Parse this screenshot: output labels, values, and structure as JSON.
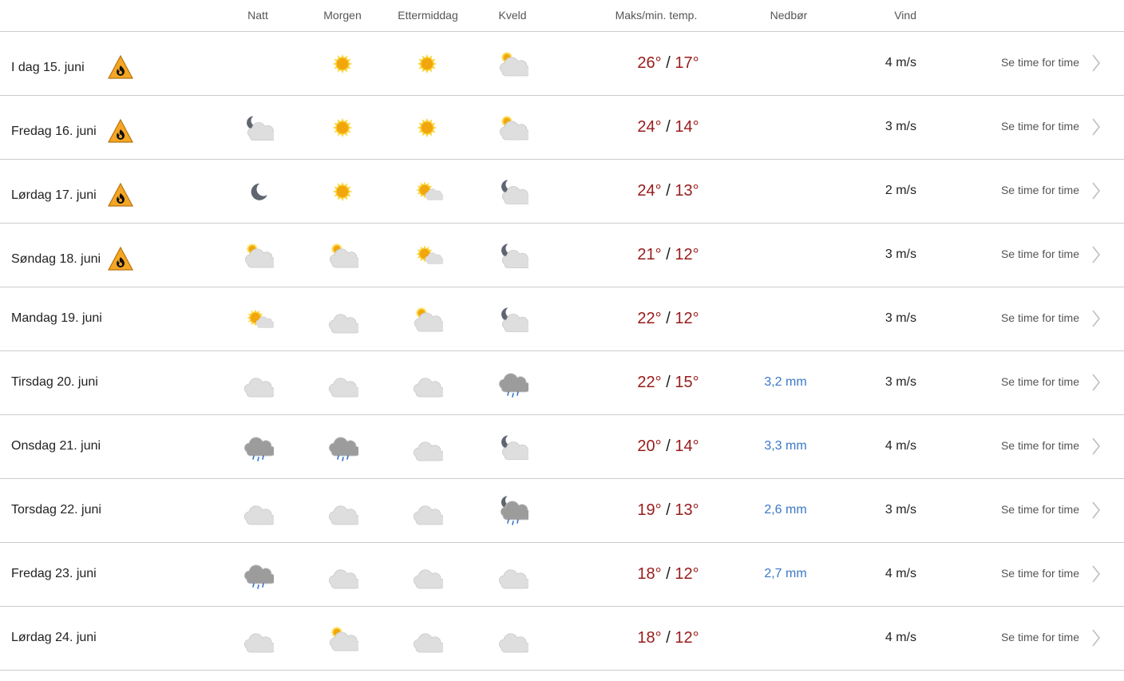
{
  "header": {
    "night": "Natt",
    "morning": "Morgen",
    "afternoon": "Ettermiddag",
    "evening": "Kveld",
    "temp": "Maks/min. temp.",
    "precip": "Nedbør",
    "wind": "Vind"
  },
  "colors": {
    "temp": "#9a1b1b",
    "precip": "#3a78c8",
    "warning": "#f5a623"
  },
  "rows": [
    {
      "day": "I dag 15. juni",
      "warning": "fire-danger",
      "icons": [
        "",
        "sun",
        "sun",
        "partly-cloudy-day"
      ],
      "max": "26°",
      "min": "17°",
      "precip": "",
      "wind": "4 m/s",
      "link": "Se time for time"
    },
    {
      "day": "Fredag 16. juni",
      "warning": "fire-danger",
      "icons": [
        "partly-cloudy-night",
        "sun",
        "sun",
        "partly-cloudy-day"
      ],
      "max": "24°",
      "min": "14°",
      "precip": "",
      "wind": "3 m/s",
      "link": "Se time for time"
    },
    {
      "day": "Lørdag 17. juni",
      "warning": "fire-danger",
      "icons": [
        "moon",
        "sun",
        "fair-day",
        "partly-cloudy-night"
      ],
      "max": "24°",
      "min": "13°",
      "precip": "",
      "wind": "2 m/s",
      "link": "Se time for time"
    },
    {
      "day": "Søndag 18. juni",
      "warning": "fire-danger",
      "icons": [
        "partly-cloudy-day",
        "partly-cloudy-day",
        "fair-day",
        "partly-cloudy-night"
      ],
      "max": "21°",
      "min": "12°",
      "precip": "",
      "wind": "3 m/s",
      "link": "Se time for time"
    },
    {
      "day": "Mandag 19. juni",
      "warning": "",
      "icons": [
        "fair-day",
        "cloud",
        "partly-cloudy-day",
        "partly-cloudy-night"
      ],
      "max": "22°",
      "min": "12°",
      "precip": "",
      "wind": "3 m/s",
      "link": "Se time for time"
    },
    {
      "day": "Tirsdag 20. juni",
      "warning": "",
      "icons": [
        "cloud",
        "cloud",
        "cloud",
        "rain"
      ],
      "max": "22°",
      "min": "15°",
      "precip": "3,2 mm",
      "wind": "3 m/s",
      "link": "Se time for time"
    },
    {
      "day": "Onsdag 21. juni",
      "warning": "",
      "icons": [
        "rain",
        "rain",
        "cloud",
        "partly-cloudy-night"
      ],
      "max": "20°",
      "min": "14°",
      "precip": "3,3 mm",
      "wind": "4 m/s",
      "link": "Se time for time"
    },
    {
      "day": "Torsdag 22. juni",
      "warning": "",
      "icons": [
        "cloud",
        "cloud",
        "cloud",
        "rain-night"
      ],
      "max": "19°",
      "min": "13°",
      "precip": "2,6 mm",
      "wind": "3 m/s",
      "link": "Se time for time"
    },
    {
      "day": "Fredag 23. juni",
      "warning": "",
      "icons": [
        "rain",
        "cloud",
        "cloud",
        "cloud"
      ],
      "max": "18°",
      "min": "12°",
      "precip": "2,7 mm",
      "wind": "4 m/s",
      "link": "Se time for time"
    },
    {
      "day": "Lørdag 24. juni",
      "warning": "",
      "icons": [
        "cloud",
        "partly-cloudy-day",
        "cloud",
        "cloud"
      ],
      "max": "18°",
      "min": "12°",
      "precip": "",
      "wind": "4 m/s",
      "link": "Se time for time"
    }
  ]
}
